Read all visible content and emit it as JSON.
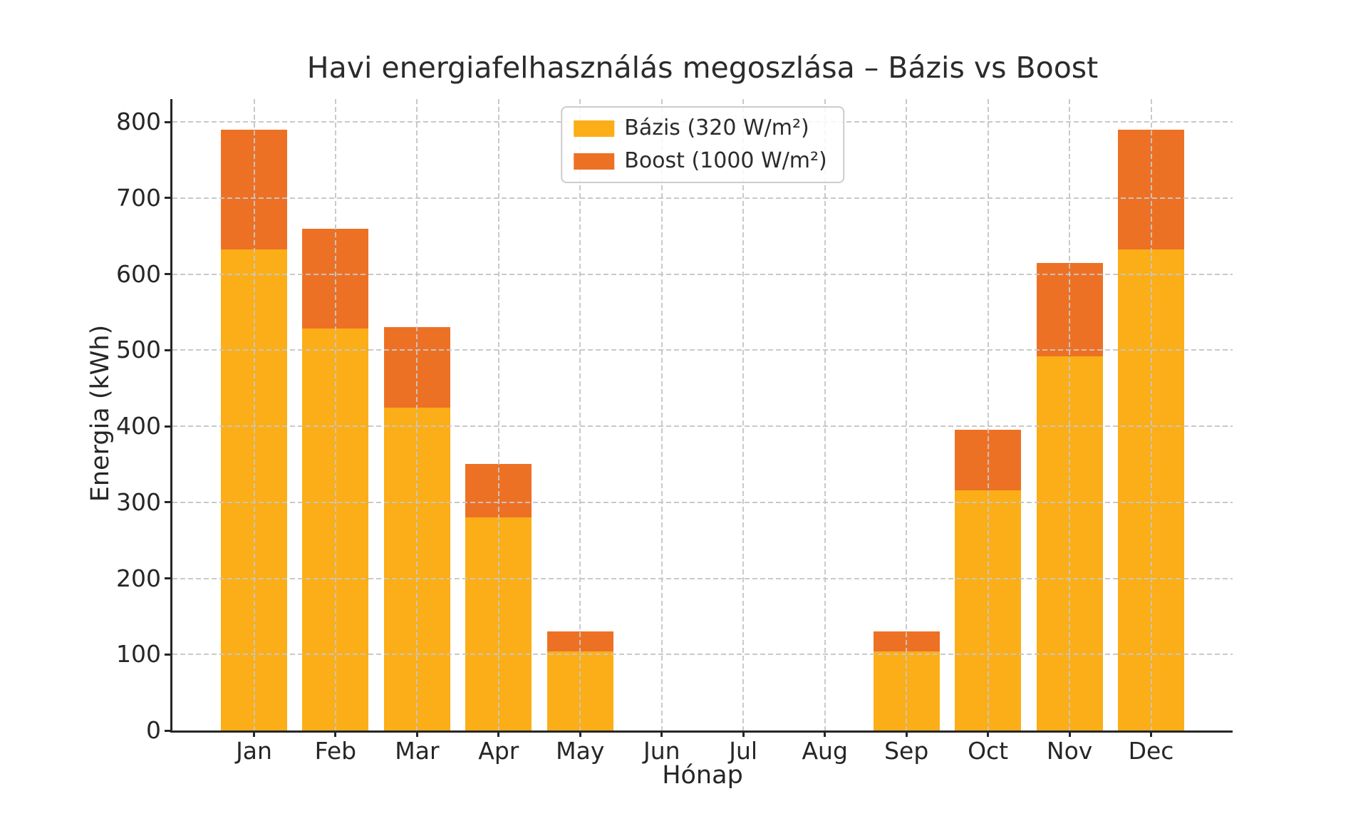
{
  "chart_data": {
    "type": "bar",
    "stacked": true,
    "title": "Havi energiafelhasználás megoszlása – Bázis vs Boost",
    "xlabel": "Hónap",
    "ylabel": "Energia (kWh)",
    "categories": [
      "Jan",
      "Feb",
      "Mar",
      "Apr",
      "May",
      "Jun",
      "Jul",
      "Aug",
      "Sep",
      "Oct",
      "Nov",
      "Dec"
    ],
    "series": [
      {
        "name": "Bázis (320 W/m²)",
        "color": "#FBAE17",
        "values": [
          632,
          528,
          424,
          280,
          104,
          0,
          0,
          0,
          104,
          316,
          492,
          632
        ]
      },
      {
        "name": "Boost (1000 W/m²)",
        "color": "#ED7125",
        "values": [
          158,
          132,
          106,
          70,
          26,
          0,
          0,
          0,
          26,
          79,
          123,
          158
        ]
      }
    ],
    "totals": [
      790,
      660,
      530,
      350,
      130,
      0,
      0,
      0,
      130,
      395,
      615,
      790
    ],
    "ylim": [
      0,
      830
    ],
    "yticks": [
      0,
      100,
      200,
      300,
      400,
      500,
      600,
      700,
      800
    ],
    "grid": {
      "visible": true,
      "style": "dashed",
      "color": "#c6c6c6",
      "drawn_over_bars": true
    },
    "legend": {
      "position": "upper center"
    }
  },
  "style": {
    "text_color": "#262626",
    "spine_color": "#262626",
    "background": "#ffffff"
  }
}
